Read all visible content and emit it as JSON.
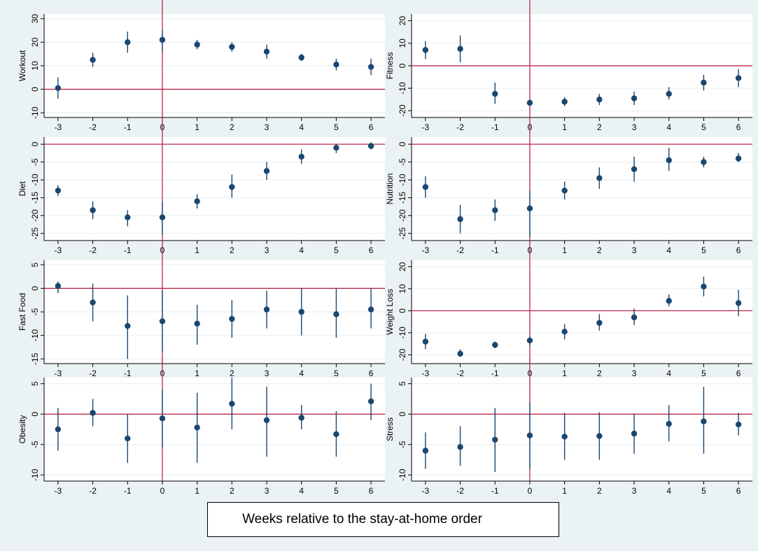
{
  "caption": "Weeks relative to the stay-at-home order",
  "colors": {
    "background": "#eaf2f3",
    "panel": "#ffffff",
    "grid": "#e6eeef",
    "reference_line": "#b0183c",
    "marker": "#1a476f",
    "axis": "#000000"
  },
  "chart_data": [
    {
      "type": "scatter",
      "ylabel": "Workout",
      "ylim": [
        -12,
        32
      ],
      "yticks": [
        -10,
        0,
        10,
        20,
        30
      ],
      "x": [
        -3,
        -2,
        -1,
        0,
        1,
        2,
        3,
        4,
        5,
        6
      ],
      "y": [
        0.5,
        12.5,
        20,
        21,
        19,
        18,
        16,
        13.5,
        10.5,
        9.5
      ],
      "ci_low": [
        -4,
        9.5,
        15.5,
        16,
        17,
        16,
        13,
        12,
        8,
        6
      ],
      "ci_high": [
        5,
        15.5,
        24.5,
        25,
        21,
        20,
        19,
        15,
        13,
        13
      ]
    },
    {
      "type": "scatter",
      "ylabel": "Fitness",
      "ylim": [
        -23,
        23
      ],
      "yticks": [
        -20,
        -10,
        0,
        10,
        20
      ],
      "x": [
        -3,
        -2,
        -1,
        0,
        1,
        2,
        3,
        4,
        5,
        6
      ],
      "y": [
        7,
        7.5,
        -12.5,
        -16.5,
        -16,
        -15,
        -14.5,
        -12.5,
        -7.5,
        -5.5
      ],
      "ci_low": [
        3,
        1.5,
        -17,
        -18,
        -18,
        -17.5,
        -17.5,
        -15,
        -11,
        -9.5
      ],
      "ci_high": [
        11,
        13.5,
        -7.5,
        -15,
        -14,
        -12.5,
        -11.5,
        -9.5,
        -4,
        -1.5
      ]
    },
    {
      "type": "scatter",
      "ylabel": "Diet",
      "ylim": [
        -27,
        2
      ],
      "yticks": [
        -25,
        -20,
        -15,
        -10,
        -5,
        0
      ],
      "x": [
        -3,
        -2,
        -1,
        0,
        1,
        2,
        3,
        4,
        5,
        6
      ],
      "y": [
        -13,
        -18.5,
        -20.5,
        -20.5,
        -16,
        -12,
        -7.5,
        -3.5,
        -1,
        -0.5
      ],
      "ci_low": [
        -14.5,
        -21,
        -23,
        -25.5,
        -18,
        -15,
        -10,
        -5.5,
        -2.5,
        -1.5
      ],
      "ci_high": [
        -11.5,
        -16,
        -18.5,
        -16,
        -14,
        -8.5,
        -5,
        -1.5,
        0,
        0.5
      ]
    },
    {
      "type": "scatter",
      "ylabel": "Nutrition",
      "ylim": [
        -27,
        2
      ],
      "yticks": [
        -25,
        -20,
        -15,
        -10,
        -5,
        0
      ],
      "x": [
        -3,
        -2,
        -1,
        0,
        1,
        2,
        3,
        4,
        5,
        6
      ],
      "y": [
        -12,
        -21,
        -18.5,
        -18,
        -13,
        -9.5,
        -7,
        -4.5,
        -5,
        -4
      ],
      "ci_low": [
        -15,
        -25,
        -21.5,
        -26,
        -15.5,
        -12.5,
        -10.5,
        -7.5,
        -6.5,
        -5
      ],
      "ci_high": [
        -9,
        -17,
        -15.5,
        -13,
        -10.5,
        -6.5,
        -3.5,
        -1,
        -3.5,
        -2.5
      ]
    },
    {
      "type": "scatter",
      "ylabel": "Fast Food",
      "ylim": [
        -16,
        6
      ],
      "yticks": [
        -15,
        -10,
        -5,
        0,
        5
      ],
      "x": [
        -3,
        -2,
        -1,
        0,
        1,
        2,
        3,
        4,
        5,
        6
      ],
      "y": [
        0.5,
        -3,
        -8,
        -7,
        -7.5,
        -6.5,
        -4.5,
        -5,
        -5.5,
        -4.5
      ],
      "ci_low": [
        -1,
        -7,
        -15,
        -13.5,
        -12,
        -10.5,
        -8.5,
        -10,
        -10.5,
        -8.5
      ],
      "ci_high": [
        1.5,
        1,
        -1.5,
        -0.5,
        -3.5,
        -2.5,
        -0.5,
        0,
        0,
        0
      ]
    },
    {
      "type": "scatter",
      "ylabel": "Weight Loss",
      "ylim": [
        -24,
        23
      ],
      "yticks": [
        -20,
        -10,
        0,
        10,
        20
      ],
      "x": [
        -3,
        -2,
        -1,
        0,
        1,
        2,
        3,
        4,
        5,
        6
      ],
      "y": [
        -14,
        -19.5,
        -15.5,
        -13.5,
        -9.5,
        -5.5,
        -3,
        4.5,
        11,
        3.5
      ],
      "ci_low": [
        -17.5,
        -21,
        -17,
        -16,
        -13,
        -9,
        -6.5,
        2,
        6.5,
        -2.5
      ],
      "ci_high": [
        -10.5,
        -17.5,
        -14,
        -11.5,
        -6,
        -1.5,
        1,
        7.5,
        15.5,
        9.5
      ]
    },
    {
      "type": "scatter",
      "ylabel": "Obesity",
      "ylim": [
        -11,
        6
      ],
      "yticks": [
        -10,
        -5,
        0,
        5
      ],
      "x": [
        -3,
        -2,
        -1,
        0,
        1,
        2,
        3,
        4,
        5,
        6
      ],
      "y": [
        -2.5,
        0.2,
        -4,
        -0.7,
        -2.2,
        1.7,
        -1,
        -0.6,
        -3.3,
        2.1
      ],
      "ci_low": [
        -6,
        -2,
        -8,
        -5.5,
        -8,
        -2.5,
        -7,
        -2.5,
        -7,
        -1
      ],
      "ci_high": [
        1,
        2.5,
        0,
        4,
        3.5,
        6,
        4.5,
        1.5,
        0.5,
        5
      ]
    },
    {
      "type": "scatter",
      "ylabel": "Stress",
      "ylim": [
        -11,
        6
      ],
      "yticks": [
        -10,
        -5,
        0,
        5
      ],
      "x": [
        -3,
        -2,
        -1,
        0,
        1,
        2,
        3,
        4,
        5,
        6
      ],
      "y": [
        -6,
        -5.4,
        -4.2,
        -3.5,
        -3.7,
        -3.6,
        -3.2,
        -1.6,
        -1.2,
        -1.7
      ],
      "ci_low": [
        -9,
        -8.5,
        -9.5,
        -9,
        -7.5,
        -7.5,
        -6.5,
        -4.5,
        -6.5,
        -3.5
      ],
      "ci_high": [
        -3,
        -2,
        1,
        2,
        0.2,
        0.3,
        0.1,
        1.5,
        4.5,
        0.2
      ]
    }
  ]
}
